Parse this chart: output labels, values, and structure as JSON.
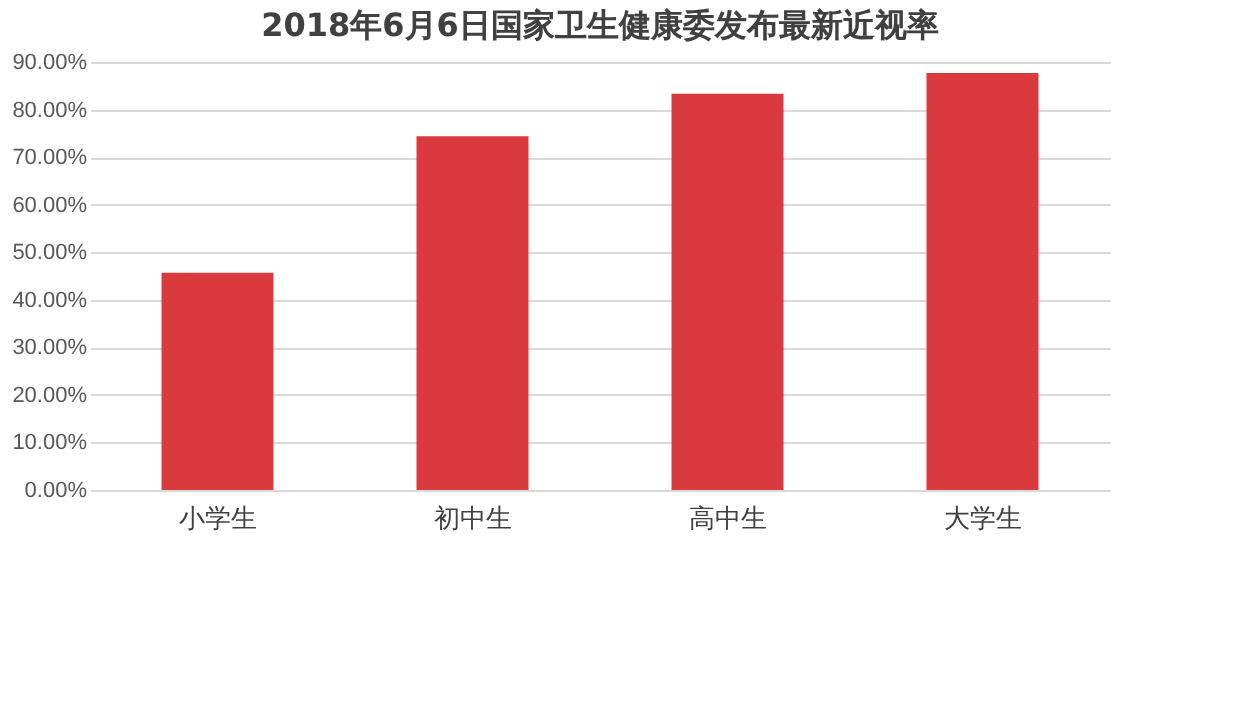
{
  "chart_data": {
    "type": "bar",
    "title": "2018年6月6日国家卫生健康委发布最新近视率",
    "categories": [
      "小学生",
      "初中生",
      "高中生",
      "大学生"
    ],
    "values": [
      45.7,
      74.4,
      83.3,
      87.7
    ],
    "color": "#d93a3d",
    "ylim": [
      0,
      90
    ],
    "yticks": [
      {
        "value": 0,
        "label": "0.00%"
      },
      {
        "value": 10,
        "label": "10.00%"
      },
      {
        "value": 20,
        "label": "20.00%"
      },
      {
        "value": 30,
        "label": "30.00%"
      },
      {
        "value": 40,
        "label": "40.00%"
      },
      {
        "value": 50,
        "label": "50.00%"
      },
      {
        "value": 60,
        "label": "60.00%"
      },
      {
        "value": 70,
        "label": "70.00%"
      },
      {
        "value": 80,
        "label": "80.00%"
      },
      {
        "value": 90,
        "label": "90.00%"
      }
    ],
    "grid": "y"
  }
}
